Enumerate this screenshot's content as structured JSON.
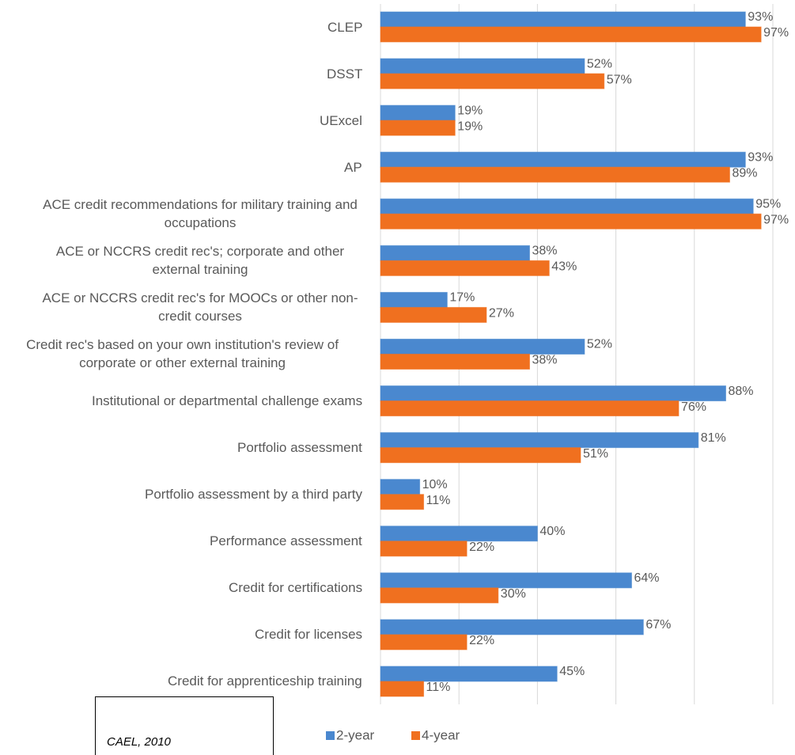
{
  "chart_data": {
    "type": "bar",
    "orientation": "horizontal",
    "categories": [
      "CLEP",
      "DSST",
      "UExcel",
      "AP",
      "ACE credit recommendations for military training and occupations",
      "ACE or NCCRS credit rec's; corporate and other external training",
      "ACE or NCCRS credit rec's for MOOCs or other non-credit courses",
      "Credit rec's based on your own institution's review of corporate or other external training",
      "Institutional or departmental challenge exams",
      "Portfolio assessment",
      "Portfolio assessment by a third party",
      "Performance assessment",
      "Credit for certifications",
      "Credit for licenses",
      "Credit for apprenticeship training"
    ],
    "series": [
      {
        "name": "2-year",
        "color": "#4a88cf",
        "values": [
          93,
          52,
          19,
          93,
          95,
          38,
          17,
          52,
          88,
          81,
          10,
          40,
          64,
          67,
          45
        ],
        "value_labels": [
          "93%",
          "52%",
          "19%",
          "93%",
          "95%",
          "38%",
          "17%",
          "52%",
          "88%",
          "81%",
          "10%",
          "40%",
          "64%",
          "67%",
          "45%"
        ]
      },
      {
        "name": "4-year",
        "color": "#f0701f",
        "values": [
          97,
          57,
          19,
          89,
          97,
          43,
          27,
          38,
          76,
          51,
          11,
          22,
          30,
          22,
          11
        ],
        "value_labels": [
          "97%",
          "57%",
          "19%",
          "89%",
          "97%",
          "43%",
          "27%",
          "38%",
          "76%",
          "51%",
          "11%",
          "22%",
          "30%",
          "22%",
          "11%"
        ]
      }
    ],
    "xlim": [
      0,
      100
    ],
    "xticks": [
      0,
      20,
      40,
      60,
      80,
      100
    ],
    "grid": true,
    "legend": "bottom",
    "source": "CAEL, 2010"
  }
}
